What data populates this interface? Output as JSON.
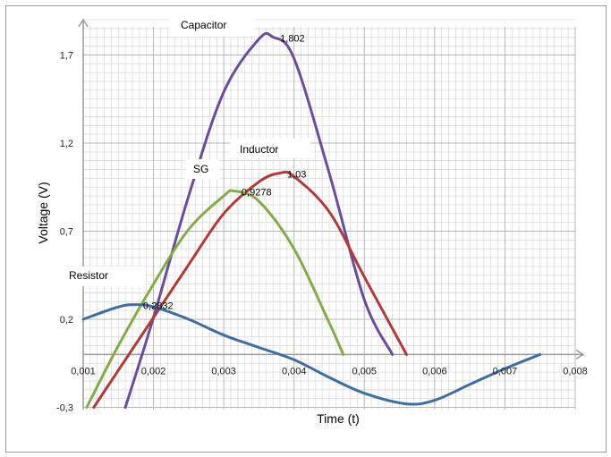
{
  "chart_data": {
    "type": "line",
    "xlabel": "Time (t)",
    "ylabel": "Voltage (V)",
    "xlim": [
      0.001,
      0.008
    ],
    "ylim": [
      -0.3,
      1.9
    ],
    "x_ticks": [
      "0,001",
      "0,002",
      "0,003",
      "0,004",
      "0,005",
      "0,006",
      "0,007",
      "0,008"
    ],
    "y_ticks": [
      "-0,3",
      "0,2",
      "0,7",
      "1,2",
      "1,7"
    ],
    "grid": true,
    "series": [
      {
        "name": "Capacitor",
        "color": "#6B4C9A",
        "peak_label": "1,802",
        "points": [
          [
            0.0016,
            -0.3
          ],
          [
            0.002,
            0.21
          ],
          [
            0.0025,
            0.9
          ],
          [
            0.003,
            1.49
          ],
          [
            0.0035,
            1.79
          ],
          [
            0.0037,
            1.802
          ],
          [
            0.004,
            1.68
          ],
          [
            0.0045,
            1.03
          ],
          [
            0.005,
            0.31
          ],
          [
            0.0054,
            0.0
          ]
        ]
      },
      {
        "name": "Inductor",
        "color": "#B03A3A",
        "peak_label": "1,03",
        "points": [
          [
            0.00115,
            -0.3
          ],
          [
            0.0015,
            -0.09
          ],
          [
            0.002,
            0.21
          ],
          [
            0.0025,
            0.51
          ],
          [
            0.003,
            0.8
          ],
          [
            0.0035,
            0.98
          ],
          [
            0.0038,
            1.03
          ],
          [
            0.004,
            1.01
          ],
          [
            0.0045,
            0.81
          ],
          [
            0.005,
            0.44
          ],
          [
            0.0056,
            0.0
          ]
        ]
      },
      {
        "name": "SG",
        "color": "#84AA4C",
        "peak_label": "0,9278",
        "points": [
          [
            0.00105,
            -0.3
          ],
          [
            0.0015,
            0.05
          ],
          [
            0.002,
            0.4
          ],
          [
            0.0025,
            0.71
          ],
          [
            0.003,
            0.9
          ],
          [
            0.00315,
            0.9278
          ],
          [
            0.0035,
            0.87
          ],
          [
            0.004,
            0.6
          ],
          [
            0.0045,
            0.18
          ],
          [
            0.0047,
            0.0
          ]
        ]
      },
      {
        "name": "Resistor",
        "color": "#3F6E9E",
        "peak_label": "0,2832",
        "points": [
          [
            0.001,
            0.2
          ],
          [
            0.0015,
            0.27
          ],
          [
            0.00175,
            0.2832
          ],
          [
            0.002,
            0.27
          ],
          [
            0.0025,
            0.2
          ],
          [
            0.003,
            0.11
          ],
          [
            0.0035,
            0.04
          ],
          [
            0.004,
            -0.03
          ],
          [
            0.0045,
            -0.13
          ],
          [
            0.005,
            -0.22
          ],
          [
            0.0056,
            -0.28
          ],
          [
            0.006,
            -0.26
          ],
          [
            0.0065,
            -0.17
          ],
          [
            0.007,
            -0.08
          ],
          [
            0.0075,
            0.0
          ]
        ]
      }
    ]
  }
}
